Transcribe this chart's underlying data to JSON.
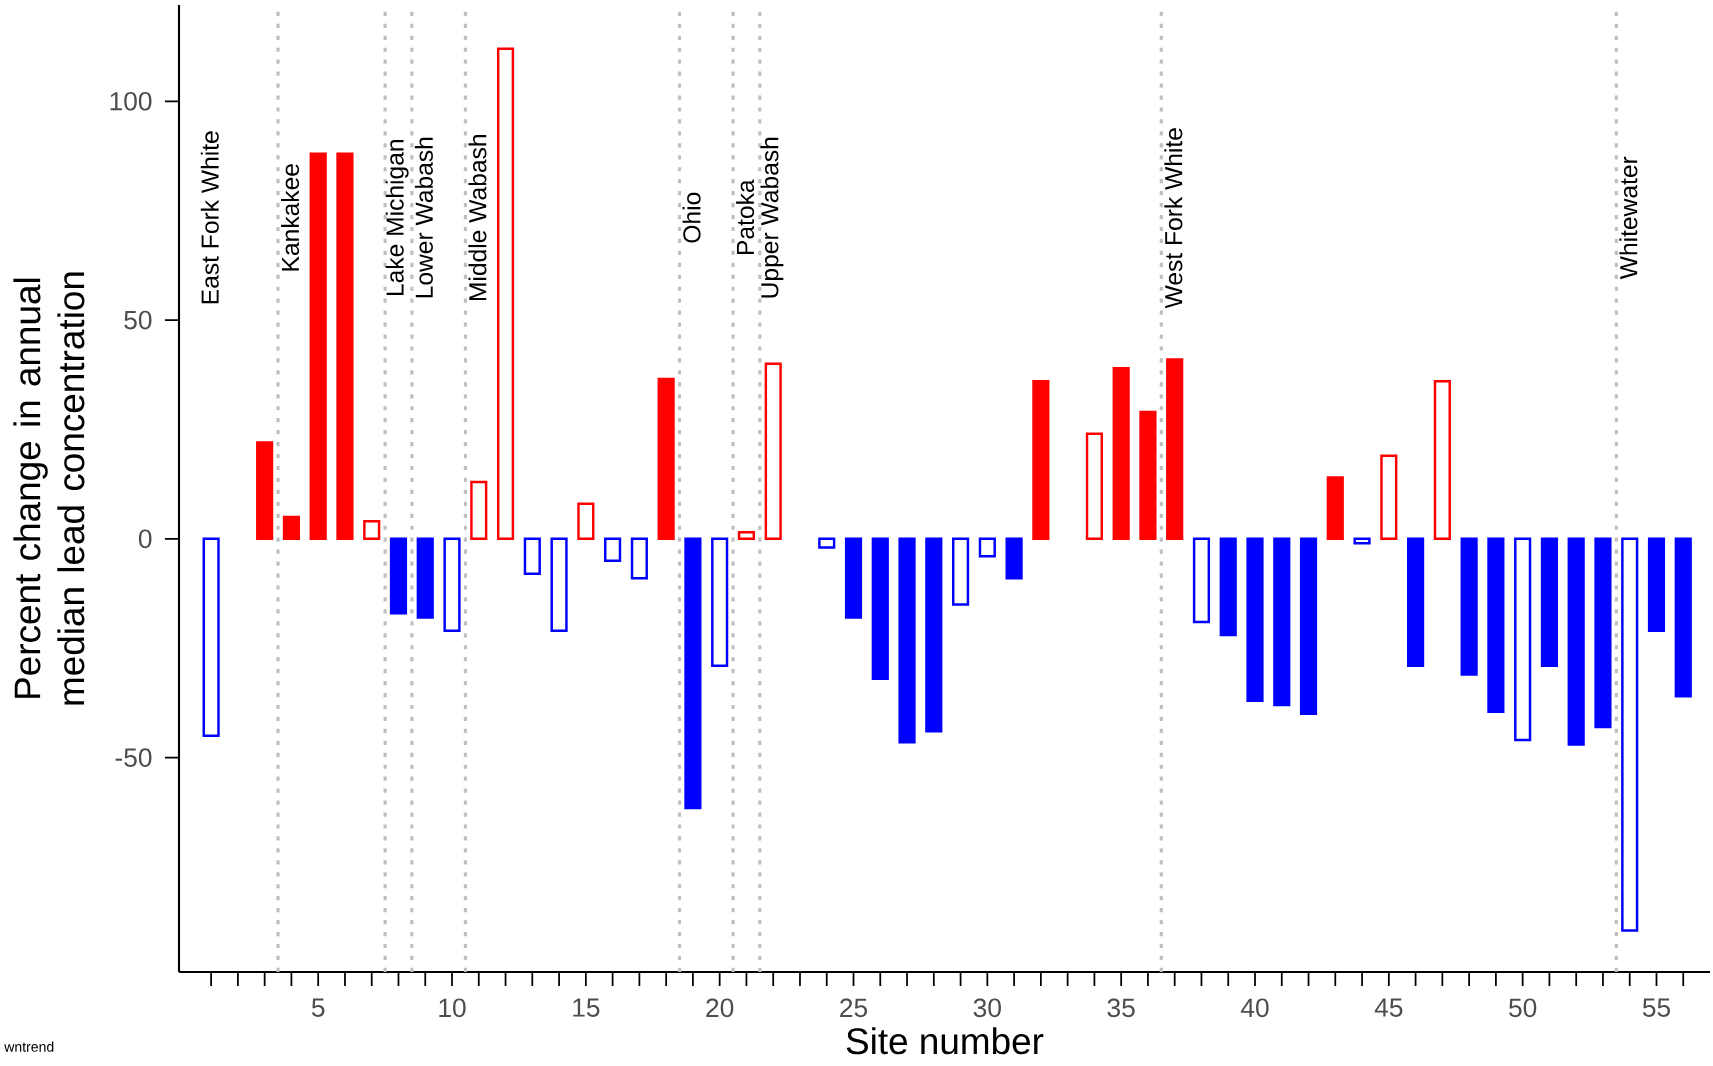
{
  "chart_data": {
    "type": "bar",
    "xlabel": "Site number",
    "ylabel": "Percent change in annual median lead concentration",
    "x": [
      1,
      2,
      3,
      4,
      5,
      6,
      7,
      8,
      9,
      10,
      11,
      12,
      13,
      14,
      15,
      16,
      17,
      18,
      19,
      20,
      21,
      22,
      23,
      24,
      25,
      26,
      27,
      28,
      29,
      30,
      31,
      32,
      33,
      34,
      35,
      36,
      37,
      38,
      39,
      40,
      41,
      42,
      43,
      44,
      45,
      46,
      47,
      48,
      49,
      50,
      51,
      52,
      53,
      54,
      55,
      56
    ],
    "series": [
      {
        "values": [
          null,
          null,
          22,
          5,
          88,
          88,
          null,
          -17,
          -18,
          null,
          null,
          null,
          null,
          null,
          null,
          null,
          null,
          36.5,
          -61.5,
          null,
          null,
          null,
          null,
          null,
          -18,
          -32,
          -46.5,
          -44,
          null,
          null,
          -9,
          36,
          null,
          null,
          39,
          29,
          41,
          null,
          -22,
          -37,
          -38,
          -40,
          14,
          null,
          null,
          -29,
          null,
          -31,
          -39.5,
          null,
          -29,
          -47,
          -43,
          null,
          -21,
          -36
        ],
        "colors": [
          null,
          null,
          "#ff0000",
          "#ff0000",
          "#ff0000",
          "#ff0000",
          null,
          "#0000ff",
          "#0000ff",
          null,
          null,
          null,
          null,
          null,
          null,
          null,
          null,
          "#ff0000",
          "#0000ff",
          null,
          null,
          null,
          null,
          null,
          "#0000ff",
          "#0000ff",
          "#0000ff",
          "#0000ff",
          null,
          null,
          "#0000ff",
          "#ff0000",
          null,
          null,
          "#ff0000",
          "#ff0000",
          "#ff0000",
          null,
          "#0000ff",
          "#0000ff",
          "#0000ff",
          "#0000ff",
          "#ff0000",
          null,
          null,
          "#0000ff",
          null,
          "#0000ff",
          "#0000ff",
          null,
          "#0000ff",
          "#0000ff",
          "#0000ff",
          null,
          "#0000ff",
          "#0000ff"
        ]
      },
      {
        "color": "#ffffff",
        "values": [
          -45,
          null,
          null,
          null,
          null,
          null,
          4,
          null,
          null,
          -21,
          13,
          112,
          -8,
          -21,
          8,
          -5,
          -9,
          null,
          null,
          -29,
          1.5,
          40,
          null,
          -2,
          null,
          null,
          null,
          null,
          -15,
          -4,
          null,
          null,
          null,
          24,
          null,
          null,
          null,
          -19,
          null,
          null,
          null,
          null,
          null,
          -1,
          19,
          null,
          36,
          null,
          null,
          -46,
          null,
          null,
          null,
          -89.5,
          null,
          null
        ],
        "colors": [
          "#0000ff",
          null,
          null,
          null,
          null,
          null,
          "#ff0000",
          null,
          null,
          "#0000ff",
          "#ff0000",
          "#ff0000",
          "#0000ff",
          "#0000ff",
          "#ff0000",
          "#0000ff",
          "#0000ff",
          null,
          null,
          "#0000ff",
          "#ff0000",
          "#ff0000",
          null,
          "#0000ff",
          null,
          null,
          null,
          null,
          "#0000ff",
          "#0000ff",
          null,
          null,
          null,
          "#ff0000",
          null,
          null,
          null,
          "#0000ff",
          null,
          null,
          null,
          null,
          null,
          "#0000ff",
          "#ff0000",
          null,
          "#ff0000",
          null,
          null,
          "#0000ff",
          null,
          null,
          null,
          "#0000ff",
          null,
          null
        ]
      }
    ],
    "xlim": [
      -0.2,
      57
    ],
    "ylim": [
      -99,
      122
    ],
    "yticks": [
      -50,
      0,
      50,
      100
    ],
    "xticks": [
      {
        "value": 1,
        "label": null
      },
      {
        "value": 2,
        "label": null
      },
      {
        "value": 3,
        "label": null
      },
      {
        "value": 4,
        "label": null
      },
      5,
      {
        "value": 6,
        "label": null
      },
      {
        "value": 7,
        "label": null
      },
      {
        "value": 8,
        "label": null
      },
      {
        "value": 9,
        "label": null
      },
      10,
      {
        "value": 11,
        "label": null
      },
      {
        "value": 12,
        "label": null
      },
      {
        "value": 13,
        "label": null
      },
      {
        "value": 14,
        "label": null
      },
      15,
      {
        "value": 16,
        "label": null
      },
      {
        "value": 17,
        "label": null
      },
      {
        "value": 18,
        "label": null
      },
      {
        "value": 19,
        "label": null
      },
      20,
      {
        "value": 21,
        "label": null
      },
      {
        "value": 22,
        "label": null
      },
      {
        "value": 23,
        "label": null
      },
      {
        "value": 24,
        "label": null
      },
      25,
      {
        "value": 26,
        "label": null
      },
      {
        "value": 27,
        "label": null
      },
      {
        "value": 28,
        "label": null
      },
      {
        "value": 29,
        "label": null
      },
      30,
      {
        "value": 31,
        "label": null
      },
      {
        "value": 32,
        "label": null
      },
      {
        "value": 33,
        "label": null
      },
      {
        "value": 34,
        "label": null
      },
      35,
      {
        "value": 36,
        "label": null
      },
      {
        "value": 37,
        "label": null
      },
      {
        "value": 38,
        "label": null
      },
      {
        "value": 39,
        "label": null
      },
      40,
      {
        "value": 41,
        "label": null
      },
      {
        "value": 42,
        "label": null
      },
      {
        "value": 43,
        "label": null
      },
      {
        "value": 44,
        "label": null
      },
      45,
      {
        "value": 46,
        "label": null
      },
      {
        "value": 47,
        "label": null
      },
      {
        "value": 48,
        "label": null
      },
      {
        "value": 49,
        "label": null
      },
      50,
      {
        "value": 51,
        "label": null
      },
      {
        "value": 52,
        "label": null
      },
      {
        "value": 53,
        "label": null
      },
      {
        "value": 54,
        "label": null
      },
      55,
      {
        "value": 56,
        "label": null
      }
    ],
    "ref_lines": [
      {
        "axis": "x",
        "value": 3.5,
        "color": "#bfbfbf",
        "line_style": "dotted"
      },
      {
        "axis": "x",
        "value": 7.5,
        "color": "#bfbfbf",
        "line_style": "dotted"
      },
      {
        "axis": "x",
        "value": 8.5,
        "color": "#bfbfbf",
        "line_style": "dotted"
      },
      {
        "axis": "x",
        "value": 10.5,
        "color": "#bfbfbf",
        "line_style": "dotted"
      },
      {
        "axis": "x",
        "value": 18.5,
        "color": "#bfbfbf",
        "line_style": "dotted"
      },
      {
        "axis": "x",
        "value": 20.5,
        "color": "#bfbfbf",
        "line_style": "dotted"
      },
      {
        "axis": "x",
        "value": 21.5,
        "color": "#bfbfbf",
        "line_style": "dotted"
      },
      {
        "axis": "x",
        "value": 36.5,
        "color": "#bfbfbf",
        "line_style": "dotted"
      },
      {
        "axis": "x",
        "value": 53.5,
        "color": "#bfbfbf",
        "line_style": "dotted"
      }
    ],
    "annotations": [
      "East Fork White",
      "Kankakee",
      "Lake Michigan",
      "Lower Wabash",
      "Middle Wabash",
      "Ohio",
      "Patoka",
      "Upper Wabash",
      "West Fork White",
      "Whitewater",
      "wntrend"
    ]
  }
}
